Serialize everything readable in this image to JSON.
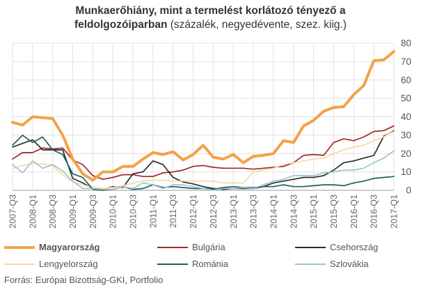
{
  "title": {
    "line1": "Munkaerőhiány, mint a termelést korlátozó tényező  a",
    "line2_bold": "feldolgozóiparban",
    "line2_rest": " (százalék, negyedévente, szez. kiig.)"
  },
  "source": "Forrás: Európai Bizottság-GKI, Portfolio",
  "chart_data": {
    "type": "line",
    "title": "Munkaerőhiány, mint a termelést korlátozó tényező a feldolgozóiparban (százalék, negyedévente, szez. kiig.)",
    "xlabel": "",
    "ylabel": "",
    "ylim": [
      0,
      80
    ],
    "yticks": [
      0,
      10,
      20,
      30,
      40,
      50,
      60,
      70,
      80
    ],
    "y_axis_side": "right",
    "grid": true,
    "legend_position": "bottom",
    "x": [
      "2007-Q3",
      "2007-Q4",
      "2008-Q1",
      "2008-Q2",
      "2008-Q3",
      "2008-Q4",
      "2009-Q1",
      "2009-Q2",
      "2009-Q3",
      "2009-Q4",
      "2010-Q1",
      "2010-Q2",
      "2010-Q3",
      "2010-Q4",
      "2011-Q1",
      "2011-Q2",
      "2011-Q3",
      "2011-Q4",
      "2012-Q1",
      "2012-Q2",
      "2012-Q3",
      "2012-Q4",
      "2013-Q1",
      "2013-Q2",
      "2013-Q3",
      "2013-Q4",
      "2014-Q1",
      "2014-Q2",
      "2014-Q3",
      "2014-Q4",
      "2015-Q1",
      "2015-Q2",
      "2015-Q3",
      "2015-Q4",
      "2016-Q1",
      "2016-Q2",
      "2016-Q3",
      "2016-Q4",
      "2017-Q1"
    ],
    "tick_labels": [
      "2007-Q3",
      "2008-Q1",
      "2008-Q3",
      "2009-Q1",
      "2009-Q3",
      "2010-Q1",
      "2010-Q3",
      "2011-Q1",
      "2011-Q3",
      "2012-Q1",
      "2012-Q3",
      "2013-Q1",
      "2013-Q3",
      "2014-Q1",
      "2014-Q3",
      "2015-Q1",
      "2015-Q3",
      "2016-Q1",
      "2016-Q3",
      "2017-Q1"
    ],
    "series": [
      {
        "name": "Magyarország",
        "color": "#f4a14a",
        "bold": true,
        "values": [
          37,
          35.5,
          40,
          39.5,
          39,
          30,
          17,
          9,
          5.5,
          10,
          10,
          13,
          13,
          17,
          20.5,
          19.5,
          21,
          16.5,
          19.5,
          24.5,
          18,
          17,
          19.5,
          15,
          18.5,
          19,
          20,
          27,
          26,
          35,
          38,
          43,
          45,
          45.5,
          52,
          57,
          70.5,
          71,
          75.5
        ]
      },
      {
        "name": "Bulgária",
        "color": "#a0282b",
        "bold": false,
        "values": [
          17,
          20.5,
          20.5,
          23,
          22.5,
          23,
          16.5,
          14,
          8,
          6,
          7,
          8.5,
          8.5,
          7.5,
          7.5,
          9.5,
          10,
          11,
          13,
          13.5,
          12.5,
          12,
          12,
          12,
          11.5,
          12,
          12.5,
          13,
          15,
          19,
          19.5,
          19,
          26,
          28,
          27,
          29,
          32,
          32.5,
          35
        ]
      },
      {
        "name": "Csehország",
        "color": "#2b2b2b",
        "bold": false,
        "values": [
          23.5,
          25.5,
          27.5,
          22,
          22,
          22,
          6.5,
          4,
          1,
          0.5,
          2,
          1.5,
          9,
          10,
          16,
          14,
          7,
          4.5,
          3.5,
          2,
          1,
          0.5,
          1,
          1,
          1,
          2,
          4,
          5,
          6,
          7,
          7,
          8,
          11,
          15,
          16,
          17.5,
          19,
          29.5,
          32.5
        ]
      },
      {
        "name": "Lengyelország",
        "color": "#f7d9a0",
        "bold": false,
        "values": [
          12,
          13.5,
          14.5,
          14.5,
          13.5,
          8.5,
          4.5,
          3,
          1.5,
          1,
          1.5,
          2.5,
          4,
          5,
          5.5,
          5.5,
          5,
          5,
          5,
          5,
          5,
          4,
          4,
          4,
          10,
          11,
          12,
          14,
          15,
          16,
          17,
          17.5,
          20,
          22,
          23.5,
          24.5,
          27,
          29,
          33
        ]
      },
      {
        "name": "Románia",
        "color": "#1f5f5f",
        "bold": false,
        "values": [
          24.5,
          30,
          26,
          29,
          22,
          19.5,
          9,
          7,
          0.5,
          0,
          0.5,
          2,
          0.5,
          1,
          3,
          1.5,
          2,
          1.5,
          1,
          1,
          0.5,
          1.5,
          2,
          1.5,
          1.5,
          2,
          2,
          3,
          2,
          2,
          2.5,
          3,
          3,
          2.5,
          4,
          5,
          6.5,
          7,
          7.5
        ]
      },
      {
        "name": "Szlovákia",
        "color": "#9dc4cf",
        "bold": false,
        "values": [
          14,
          9.5,
          16,
          12,
          14,
          10.5,
          5,
          1,
          1,
          0.5,
          0.5,
          2,
          1,
          4,
          3,
          1,
          3,
          3,
          2,
          1,
          0,
          1,
          1,
          1.5,
          1,
          3,
          5,
          6,
          8,
          8,
          8,
          9.5,
          10,
          11,
          11,
          12,
          15,
          17.5,
          21.5
        ]
      }
    ]
  }
}
